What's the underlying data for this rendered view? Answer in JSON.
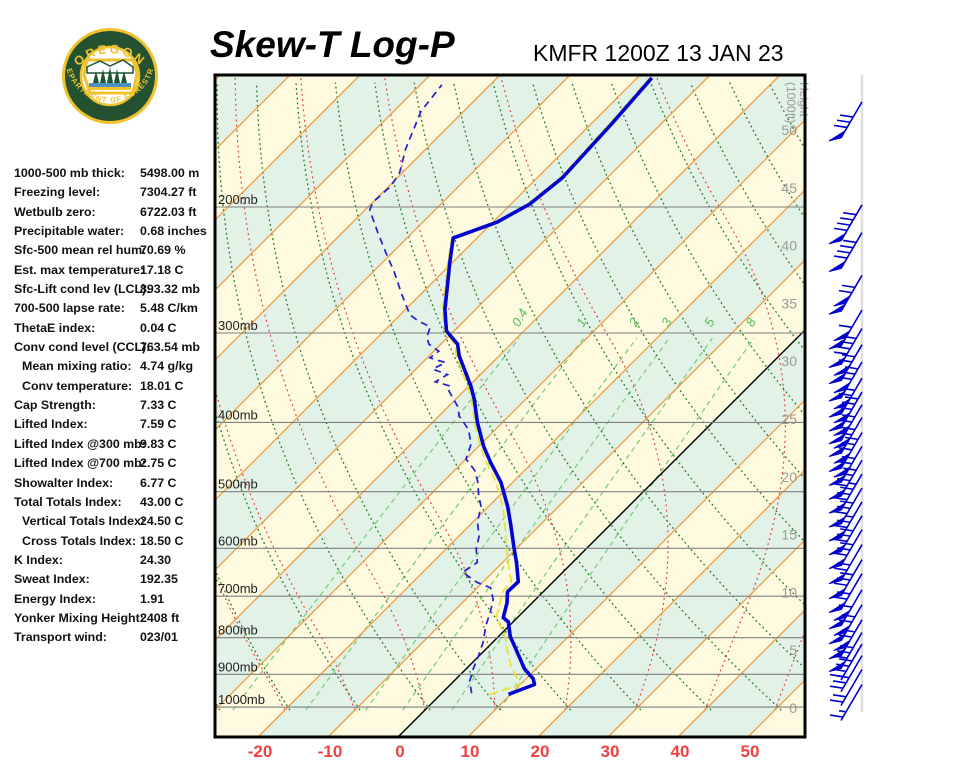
{
  "header": {
    "title": "Skew-T Log-P",
    "station": "KMFR 1200Z 13 JAN 23"
  },
  "logo": {
    "arc_top": "OREGON",
    "arc_bottom": "DEPARTMENT OF FORESTRY",
    "ring_color": "#24512f",
    "gold": "#efc22e",
    "tree_green": "#1d5631",
    "water_blue": "#4a90c4"
  },
  "indices": [
    {
      "label": "1000-500 mb thick:",
      "value": "5498.00 m",
      "indent": false
    },
    {
      "label": "Freezing level:",
      "value": "7304.27 ft",
      "indent": false
    },
    {
      "label": "Wetbulb zero:",
      "value": "6722.03 ft",
      "indent": false
    },
    {
      "label": "Precipitable water:",
      "value": "0.68 inches",
      "indent": false
    },
    {
      "label": "Sfc-500 mean rel hum:",
      "value": "70.69 %",
      "indent": false
    },
    {
      "label": "Est. max temperature:",
      "value": "17.18 C",
      "indent": false
    },
    {
      "label": "Sfc-Lift cond lev (LCL):",
      "value": "893.32 mb",
      "indent": false
    },
    {
      "label": "700-500 lapse rate:",
      "value": "5.48 C/km",
      "indent": false
    },
    {
      "label": "ThetaE index:",
      "value": "0.04 C",
      "indent": false
    },
    {
      "label": "Conv cond level (CCL):",
      "value": "763.54 mb",
      "indent": false
    },
    {
      "label": "Mean mixing ratio:",
      "value": "4.74 g/kg",
      "indent": true
    },
    {
      "label": "Conv temperature:",
      "value": "18.01 C",
      "indent": true
    },
    {
      "label": "Cap Strength:",
      "value": "7.33 C",
      "indent": false
    },
    {
      "label": "Lifted Index:",
      "value": "7.59 C",
      "indent": false
    },
    {
      "label": "Lifted Index @300 mb:",
      "value": "9.83 C",
      "indent": false
    },
    {
      "label": "Lifted Index @700 mb:",
      "value": "2.75 C",
      "indent": false
    },
    {
      "label": "Showalter Index:",
      "value": "6.77 C",
      "indent": false
    },
    {
      "label": "Total Totals Index:",
      "value": "43.00 C",
      "indent": false
    },
    {
      "label": "Vertical Totals Index:",
      "value": "24.50 C",
      "indent": true
    },
    {
      "label": "Cross Totals Index:",
      "value": "18.50 C",
      "indent": true
    },
    {
      "label": "K Index:",
      "value": "24.30",
      "indent": false
    },
    {
      "label": "Sweat Index:",
      "value": "192.35",
      "indent": false
    },
    {
      "label": "Energy Index:",
      "value": "1.91",
      "indent": false
    },
    {
      "label": "Yonker Mixing Height:",
      "value": "2408 ft",
      "indent": false
    },
    {
      "label": "Transport wind:",
      "value": "023/01",
      "indent": false
    }
  ],
  "chart_data": {
    "type": "skewt_log_p",
    "x_axis": {
      "ticks": [
        -20,
        -10,
        0,
        10,
        20,
        30,
        40,
        50
      ],
      "unit": "C"
    },
    "pressure_levels_mb": [
      200,
      300,
      400,
      500,
      600,
      700,
      800,
      900,
      1000
    ],
    "pressure_label_suffix": "mb",
    "height_axis": {
      "title_line1": "Height",
      "title_line2": "(1000ft)",
      "labels_kft": [
        50,
        45,
        40,
        35,
        30,
        25,
        20,
        15,
        10,
        5,
        0
      ]
    },
    "isotherm_step_c": 10,
    "mixing_ratio_lines_gkg": [
      0.4,
      1,
      2,
      3,
      5,
      8
    ],
    "temperature_profile_p_t": [
      [
        960,
        9.7
      ],
      [
        948,
        10.6
      ],
      [
        930,
        12.0
      ],
      [
        913,
        11.0
      ],
      [
        884,
        8.3
      ],
      [
        830,
        4.3
      ],
      [
        797,
        1.7
      ],
      [
        760,
        -0.7
      ],
      [
        750,
        -2.0
      ],
      [
        715,
        -3.6
      ],
      [
        690,
        -5.1
      ],
      [
        668,
        -5.0
      ],
      [
        628,
        -8.0
      ],
      [
        596,
        -10.7
      ],
      [
        552,
        -14.6
      ],
      [
        524,
        -17.3
      ],
      [
        485,
        -21.7
      ],
      [
        455,
        -26.0
      ],
      [
        432,
        -29.3
      ],
      [
        400,
        -33.6
      ],
      [
        371,
        -37.4
      ],
      [
        356,
        -39.7
      ],
      [
        323,
        -45.7
      ],
      [
        311,
        -47.6
      ],
      [
        298,
        -51.1
      ],
      [
        278,
        -54.4
      ],
      [
        261,
        -56.9
      ],
      [
        239,
        -60.4
      ],
      [
        221,
        -63.4
      ],
      [
        210,
        -59.4
      ],
      [
        198,
        -57.3
      ],
      [
        182,
        -56.4
      ],
      [
        152,
        -57.1
      ],
      [
        132,
        -57.9
      ]
    ],
    "dewpoint_profile_p_t": [
      [
        957,
        4.3
      ],
      [
        921,
        2.3
      ],
      [
        884,
        1.0
      ],
      [
        848,
        -0.1
      ],
      [
        811,
        -1.4
      ],
      [
        771,
        -3.3
      ],
      [
        738,
        -4.6
      ],
      [
        708,
        -6.0
      ],
      [
        681,
        -8.1
      ],
      [
        670,
        -10.7
      ],
      [
        648,
        -14.3
      ],
      [
        628,
        -13.6
      ],
      [
        601,
        -15.7
      ],
      [
        577,
        -17.1
      ],
      [
        552,
        -19.3
      ],
      [
        524,
        -21.1
      ],
      [
        507,
        -22.9
      ],
      [
        485,
        -25.0
      ],
      [
        467,
        -27.1
      ],
      [
        450,
        -30.0
      ],
      [
        429,
        -31.4
      ],
      [
        409,
        -33.9
      ],
      [
        392,
        -37.1
      ],
      [
        380,
        -38.7
      ],
      [
        362,
        -42.1
      ],
      [
        356,
        -42.6
      ],
      [
        351,
        -45.4
      ],
      [
        343,
        -44.7
      ],
      [
        337,
        -47.6
      ],
      [
        330,
        -46.7
      ],
      [
        325,
        -49.6
      ],
      [
        318,
        -49.3
      ],
      [
        311,
        -51.7
      ],
      [
        304,
        -53.0
      ],
      [
        294,
        -54.0
      ],
      [
        289,
        -56.4
      ],
      [
        283,
        -58.6
      ],
      [
        264,
        -62.9
      ],
      [
        246,
        -67.1
      ],
      [
        231,
        -71.1
      ],
      [
        217,
        -75.0
      ],
      [
        202,
        -79.3
      ],
      [
        197,
        -80.0
      ],
      [
        187,
        -79.7
      ],
      [
        179,
        -80.4
      ],
      [
        166,
        -82.9
      ],
      [
        147,
        -86.1
      ],
      [
        135,
        -86.9
      ]
    ],
    "wetbulb_profile_p_t": [
      [
        960,
        7.0
      ],
      [
        930,
        10.0
      ],
      [
        884,
        6.5
      ],
      [
        830,
        3.0
      ],
      [
        797,
        1.0
      ],
      [
        750,
        -3.0
      ],
      [
        715,
        -4.6
      ],
      [
        690,
        -5.8
      ],
      [
        668,
        -6.0
      ],
      [
        628,
        -9.2
      ],
      [
        596,
        -11.8
      ],
      [
        552,
        -15.4
      ],
      [
        524,
        -18.0
      ],
      [
        485,
        -22.4
      ],
      [
        455,
        -26.6
      ],
      [
        432,
        -29.8
      ],
      [
        400,
        -34.0
      ],
      [
        371,
        -37.8
      ],
      [
        356,
        -40.2
      ],
      [
        323,
        -46.1
      ],
      [
        311,
        -48.0
      ],
      [
        298,
        -51.4
      ],
      [
        278,
        -54.7
      ],
      [
        261,
        -57.2
      ],
      [
        239,
        -60.7
      ],
      [
        221,
        -63.6
      ],
      [
        210,
        -59.7
      ],
      [
        198,
        -57.6
      ],
      [
        182,
        -56.7
      ],
      [
        152,
        -57.4
      ],
      [
        132,
        -58.2
      ]
    ],
    "wind_barbs": [
      {
        "kft": 50.7,
        "flags": 1,
        "barbs": 3,
        "half": 0
      },
      {
        "kft": 41.8,
        "flags": 1,
        "barbs": 4,
        "half": 0
      },
      {
        "kft": 39.4,
        "flags": 1,
        "barbs": 4,
        "half": 0
      },
      {
        "kft": 35.7,
        "flags": 2,
        "barbs": 2,
        "half": 0
      },
      {
        "kft": 32.7,
        "flags": 2,
        "barbs": 1,
        "half": 0
      },
      {
        "kft": 31.1,
        "flags": 1,
        "barbs": 4,
        "half": 0
      },
      {
        "kft": 29.7,
        "flags": 2,
        "barbs": 2,
        "half": 0
      },
      {
        "kft": 28.2,
        "flags": 2,
        "barbs": 3,
        "half": 0
      },
      {
        "kft": 26.8,
        "flags": 2,
        "barbs": 2,
        "half": 0
      },
      {
        "kft": 25.6,
        "flags": 2,
        "barbs": 3,
        "half": 0
      },
      {
        "kft": 24.5,
        "flags": 2,
        "barbs": 2,
        "half": 0
      },
      {
        "kft": 23.4,
        "flags": 2,
        "barbs": 2,
        "half": 0
      },
      {
        "kft": 22.1,
        "flags": 2,
        "barbs": 3,
        "half": 0
      },
      {
        "kft": 20.9,
        "flags": 2,
        "barbs": 2,
        "half": 0
      },
      {
        "kft": 19.7,
        "flags": 1,
        "barbs": 4,
        "half": 0
      },
      {
        "kft": 18.5,
        "flags": 1,
        "barbs": 3,
        "half": 1
      },
      {
        "kft": 17.3,
        "flags": 1,
        "barbs": 3,
        "half": 0
      },
      {
        "kft": 16.1,
        "flags": 1,
        "barbs": 2,
        "half": 1
      },
      {
        "kft": 14.9,
        "flags": 1,
        "barbs": 3,
        "half": 0
      },
      {
        "kft": 13.7,
        "flags": 1,
        "barbs": 3,
        "half": 0
      },
      {
        "kft": 12.4,
        "flags": 1,
        "barbs": 2,
        "half": 0
      },
      {
        "kft": 11.1,
        "flags": 1,
        "barbs": 3,
        "half": 0
      },
      {
        "kft": 9.9,
        "flags": 1,
        "barbs": 2,
        "half": 0
      },
      {
        "kft": 8.5,
        "flags": 2,
        "barbs": 1,
        "half": 0
      },
      {
        "kft": 7.2,
        "flags": 2,
        "barbs": 2,
        "half": 0
      },
      {
        "kft": 5.9,
        "flags": 2,
        "barbs": 2,
        "half": 0
      },
      {
        "kft": 4.8,
        "flags": 1,
        "barbs": 3,
        "half": 0
      },
      {
        "kft": 3.8,
        "flags": 0,
        "barbs": 4,
        "half": 0
      },
      {
        "kft": 2.8,
        "flags": 0,
        "barbs": 3,
        "half": 0
      },
      {
        "kft": 1.6,
        "flags": 0,
        "barbs": 2,
        "half": 0
      },
      {
        "kft": 0.3,
        "flags": 0,
        "barbs": 1,
        "half": 1
      }
    ],
    "colors": {
      "band_yellow": "#fdfae0",
      "band_green": "#e3f2e7",
      "isotherm_orange": "#f09a3e",
      "zero_isotherm": "#000000",
      "dry_adiabat_green": "#257a25",
      "moist_adiabat_red": "#e23b3b",
      "mixing_green": "#6fcf6f",
      "pressure_line_gray": "#808080",
      "temperature_blue": "#0404cf",
      "dewpoint_blue": "#2020cf",
      "wetbulb_yellow": "#e8e232",
      "barb_blue": "#0000cc",
      "staff_gray": "#e0e0e0",
      "x_label_red": "#f04040",
      "height_label_gray": "#999999"
    }
  }
}
